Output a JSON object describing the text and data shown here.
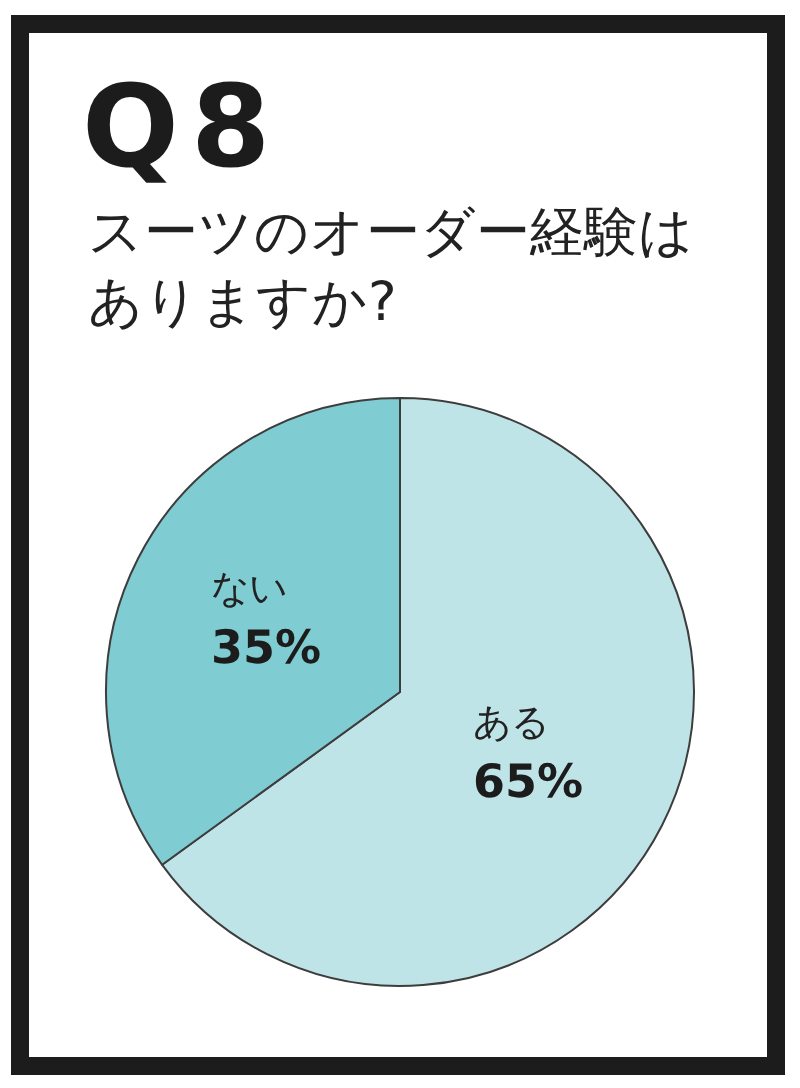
{
  "chart_data": {
    "type": "pie",
    "title": "Q8",
    "subtitle": "スーツのオーダー経験はありますか?",
    "categories": [
      "ある",
      "ない"
    ],
    "values": [
      65,
      35
    ],
    "colors": [
      "#bfe4e7",
      "#7fccd2"
    ],
    "value_labels": [
      "65%",
      "35%"
    ]
  }
}
